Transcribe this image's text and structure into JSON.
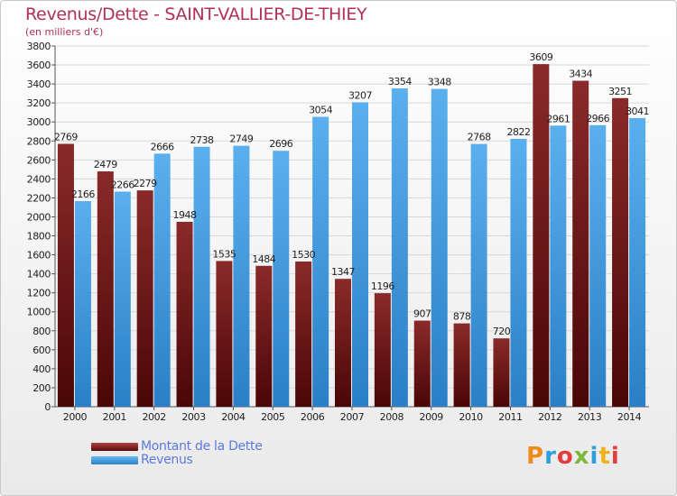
{
  "title": "Revenus/Dette - SAINT-VALLIER-DE-THIEY",
  "subtitle": "(en milliers d'€)",
  "brand": {
    "letters": [
      "P",
      "r",
      "o",
      "x",
      "i",
      "t",
      "i"
    ],
    "colors": [
      "#f08a1c",
      "#2e9fd8",
      "#e23c3c",
      "#7cb83a",
      "#2e9fd8",
      "#f0b21c",
      "#e23c3c"
    ]
  },
  "chart_data": {
    "type": "bar",
    "categories": [
      "2000",
      "2001",
      "2002",
      "2003",
      "2004",
      "2005",
      "2006",
      "2007",
      "2008",
      "2009",
      "2010",
      "2011",
      "2012",
      "2013",
      "2014"
    ],
    "series": [
      {
        "name": "Montant de la Dette",
        "color": "#7a1a1a",
        "values": [
          2769,
          2479,
          2279,
          1948,
          1535,
          1484,
          1530,
          1347,
          1196,
          907,
          878,
          720,
          3609,
          3434,
          3251
        ],
        "labels": [
          "2769",
          "2479",
          "2279",
          "1948",
          "1535",
          "1484",
          "1530",
          "1347",
          "1196",
          "907",
          "878",
          "720",
          "3609",
          "3434",
          "3251"
        ]
      },
      {
        "name": "Revenus",
        "color": "#3a9be0",
        "values": [
          2166,
          2266,
          2666,
          2738,
          2749,
          2696,
          3054,
          3207,
          3354,
          3348,
          2768,
          2822,
          2961,
          2966,
          3041
        ],
        "labels": [
          "2166",
          "2266",
          "2666",
          "2738",
          "2749",
          "2696",
          "3054",
          "3207",
          "3354",
          "3348",
          "2768",
          "2822",
          "2961",
          "2966",
          "3041"
        ]
      }
    ],
    "yticks": [
      0,
      200,
      400,
      600,
      800,
      1000,
      1200,
      1400,
      1600,
      1800,
      2000,
      2200,
      2400,
      2600,
      2800,
      3000,
      3200,
      3400,
      3600,
      3800
    ],
    "ylim": [
      0,
      3800
    ],
    "grid": true,
    "legend": "bottom-left"
  }
}
